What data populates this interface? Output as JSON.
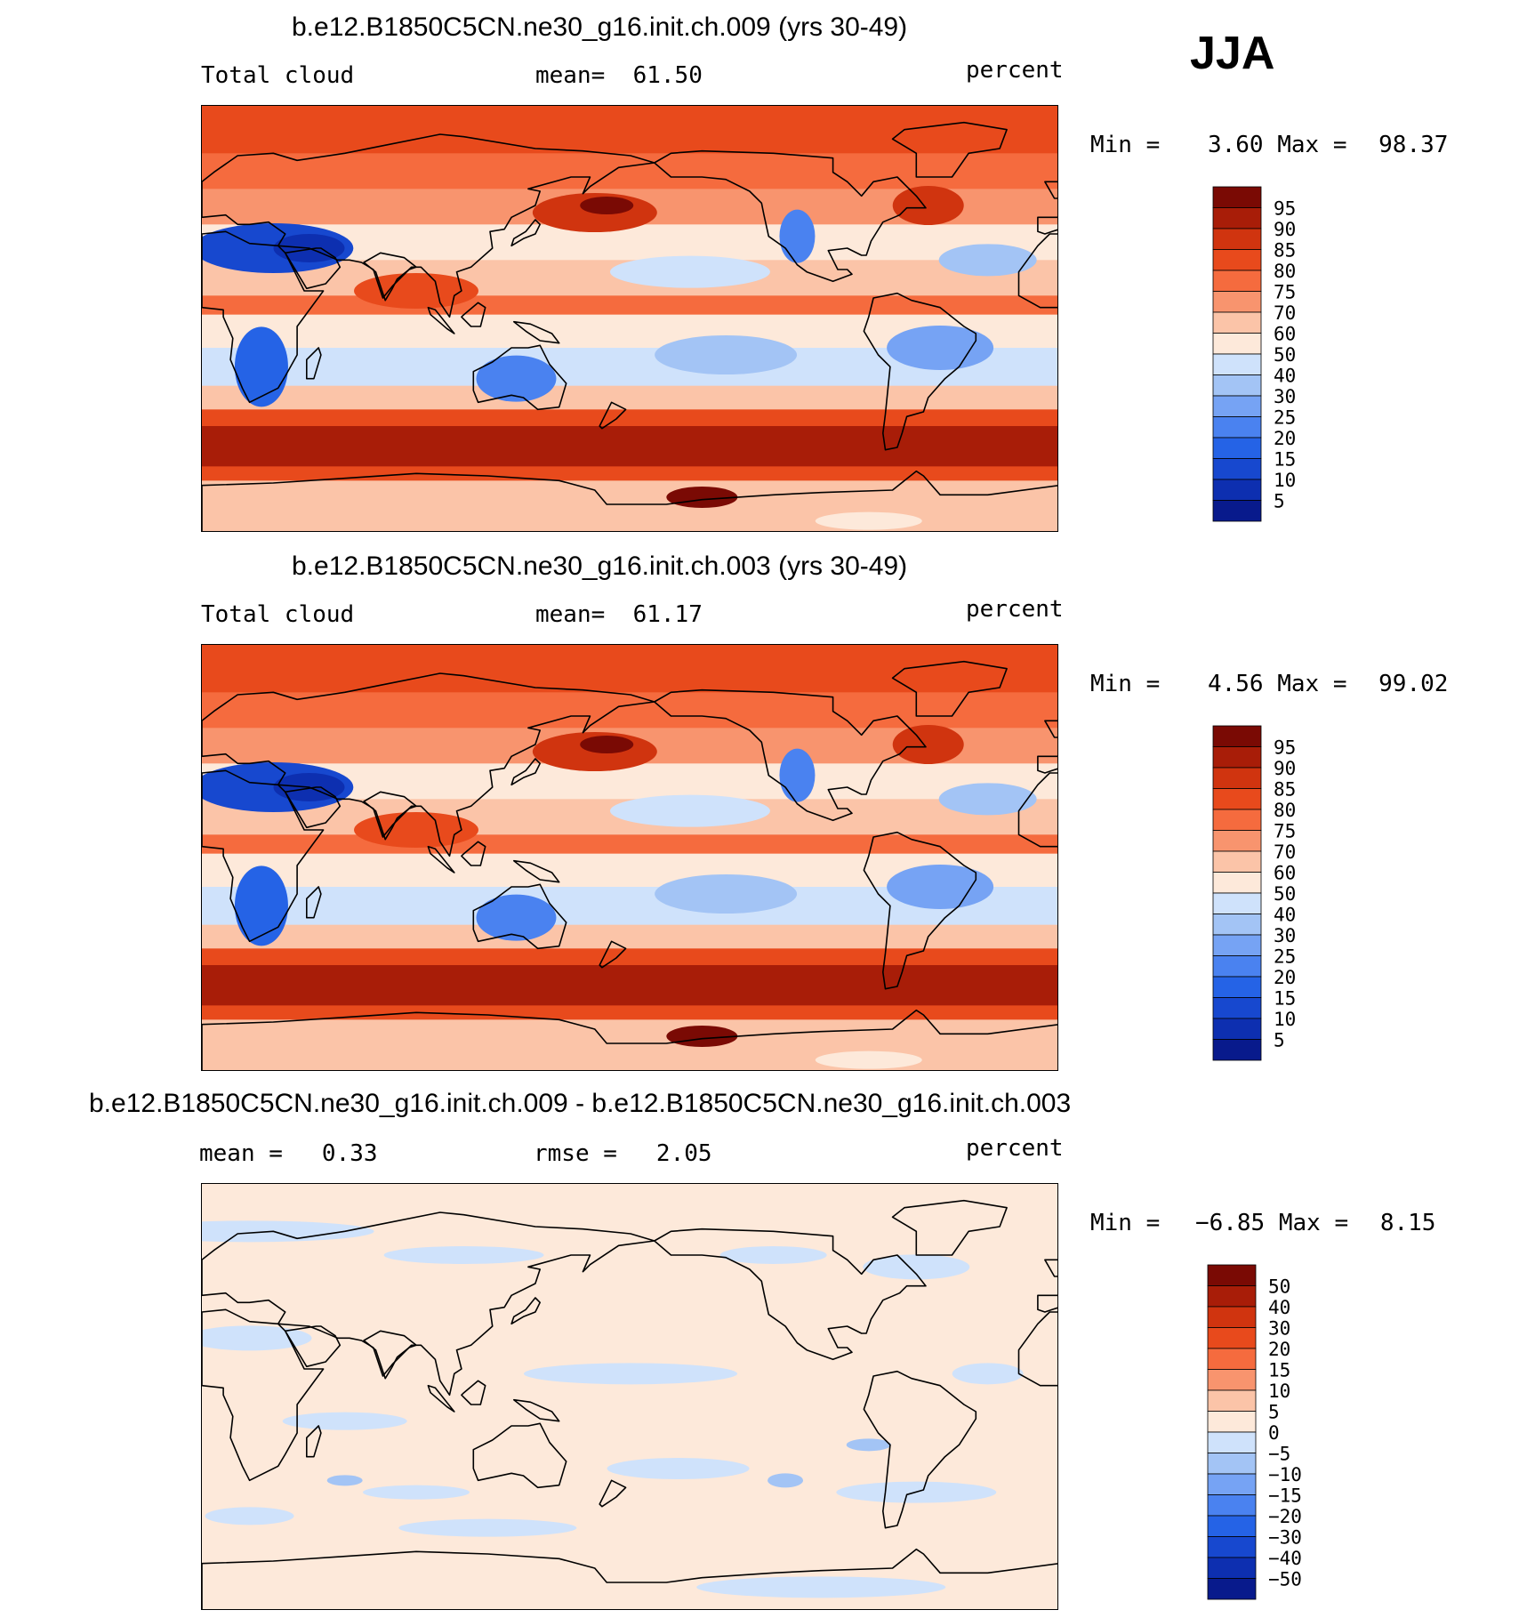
{
  "season": "JJA",
  "palette_abs": [
    "#081a8c",
    "#0d2fb0",
    "#1748cf",
    "#2563e6",
    "#4a82f0",
    "#76a3f4",
    "#a3c4f5",
    "#cfe2fb",
    "#fde9da",
    "#fbc4a8",
    "#f8946e",
    "#f56b3e",
    "#e84a1c",
    "#d0340f",
    "#a81d08",
    "#7a0a04"
  ],
  "palette_diff": [
    "#081a8c",
    "#0d2fb0",
    "#1748cf",
    "#2563e6",
    "#4a82f0",
    "#76a3f4",
    "#a3c4f5",
    "#cfe2fb",
    "#fde9da",
    "#fbc4a8",
    "#f8946e",
    "#f56b3e",
    "#e84a1c",
    "#d0340f",
    "#a81d08",
    "#7a0a04"
  ],
  "panels": [
    {
      "title": "b.e12.B1850C5CN.ne30_g16.init.ch.009 (yrs 30-49)",
      "left_label": "Total cloud",
      "center_key": "mean=",
      "center_value": "61.50",
      "units": "percent",
      "min_key": "Min =",
      "min_value": "3.60",
      "max_key": "Max =",
      "max_value": "98.37",
      "levels": [
        "95",
        "90",
        "85",
        "80",
        "75",
        "70",
        "60",
        "50",
        "40",
        "30",
        "25",
        "20",
        "15",
        "10",
        "5"
      ]
    },
    {
      "title": "b.e12.B1850C5CN.ne30_g16.init.ch.003 (yrs 30-49)",
      "left_label": "Total cloud",
      "center_key": "mean=",
      "center_value": "61.17",
      "units": "percent",
      "min_key": "Min =",
      "min_value": "4.56",
      "max_key": "Max =",
      "max_value": "99.02",
      "levels": [
        "95",
        "90",
        "85",
        "80",
        "75",
        "70",
        "60",
        "50",
        "40",
        "30",
        "25",
        "20",
        "15",
        "10",
        "5"
      ]
    },
    {
      "title": "b.e12.B1850C5CN.ne30_g16.init.ch.009 - b.e12.B1850C5CN.ne30_g16.init.ch.003",
      "left_key": "mean =",
      "left_value": "0.33",
      "center_key": "rmse =",
      "center_value": "2.05",
      "units": "percent",
      "min_key": "Min =",
      "min_value": "−6.85",
      "max_key": "Max =",
      "max_value": "8.15",
      "levels": [
        "50",
        "40",
        "30",
        "20",
        "15",
        "10",
        "5",
        "0",
        "−5",
        "−10",
        "−15",
        "−20",
        "−30",
        "−40",
        "−50"
      ]
    }
  ]
}
